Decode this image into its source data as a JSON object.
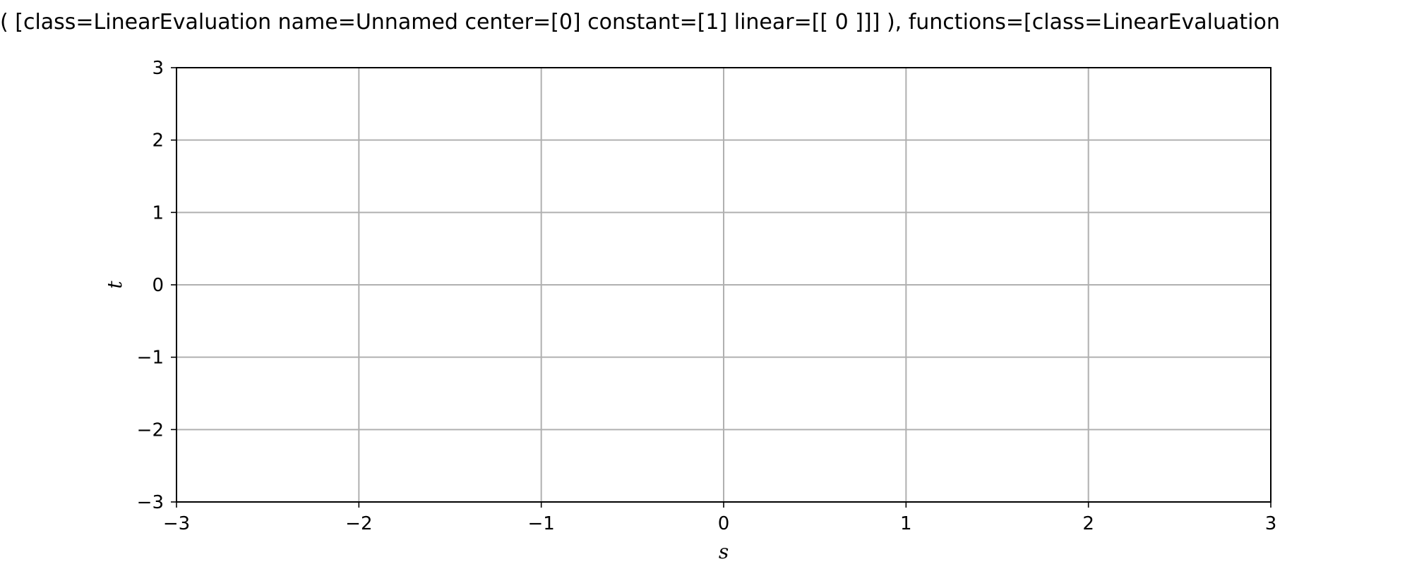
{
  "chart_data": {
    "type": "line",
    "title": "( [class=LinearEvaluation name=Unnamed center=[0] constant=[1] linear=[[ 0 ]]] ), functions=[class=LinearEvaluation",
    "xlabel": "s",
    "ylabel": "t",
    "xlim": [
      -3,
      3
    ],
    "ylim": [
      -3,
      3
    ],
    "xticks": [
      -3,
      -2,
      -1,
      0,
      1,
      2,
      3
    ],
    "yticks": [
      -3,
      -2,
      -1,
      0,
      1,
      2,
      3
    ],
    "xtick_labels": [
      "−3",
      "−2",
      "−1",
      "0",
      "1",
      "2",
      "3"
    ],
    "ytick_labels": [
      "−3",
      "−2",
      "−1",
      "0",
      "1",
      "2",
      "3"
    ],
    "grid": true,
    "series": []
  }
}
